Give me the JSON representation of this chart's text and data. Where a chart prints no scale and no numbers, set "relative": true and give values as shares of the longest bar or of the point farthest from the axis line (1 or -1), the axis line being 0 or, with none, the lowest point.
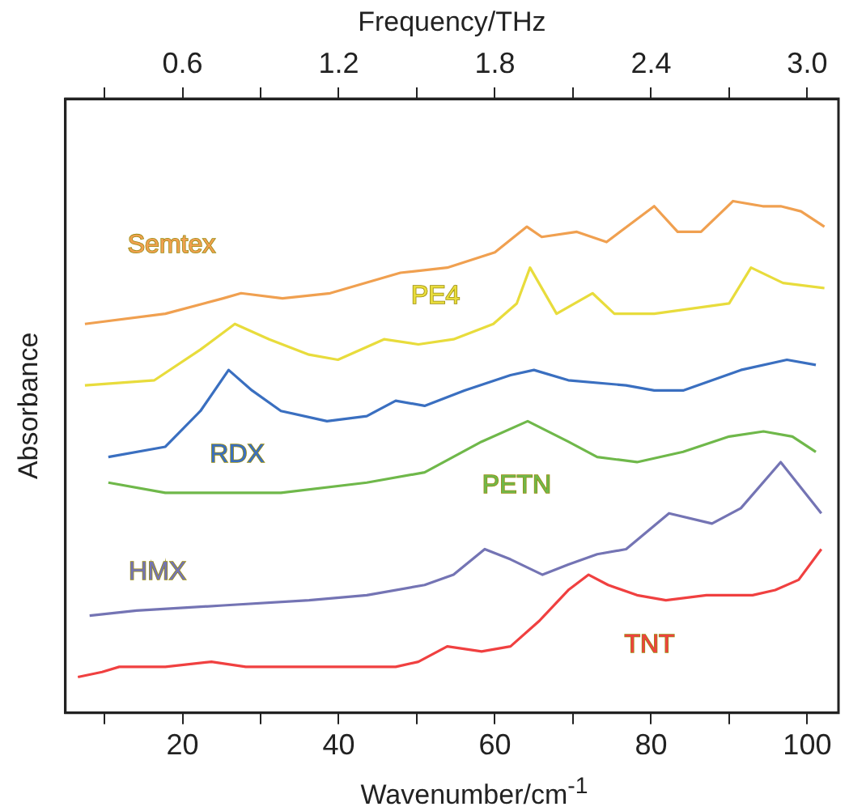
{
  "chart_data": {
    "type": "line",
    "xlabel": "Wavenumber/cm$^{-1}$",
    "ylabel": "Absorbance",
    "x2label": "Frequency/THz",
    "relative": true,
    "legend": false,
    "grid": false,
    "marker": "none",
    "line_style": "solid",
    "xlim": [
      5,
      104
    ],
    "xticks": [
      {
        "value": 10,
        "label": null
      },
      20,
      {
        "value": 30,
        "label": null
      },
      40,
      {
        "value": 50,
        "label": null
      },
      60,
      {
        "value": 70,
        "label": null
      },
      80,
      {
        "value": 90,
        "label": null
      },
      100
    ],
    "x2lim": [
      0.15,
      3.12
    ],
    "x2ticks": [
      {
        "value": 0.3,
        "label": null
      },
      0.6,
      {
        "value": 0.9,
        "label": null
      },
      1.2,
      {
        "value": 1.5,
        "label": null
      },
      1.8,
      {
        "value": 2.1,
        "label": null
      },
      2.4,
      {
        "value": 2.7,
        "label": null
      },
      {
        "value": 3,
        "label": "3.0"
      }
    ],
    "series": [
      {
        "name": "Semtex",
        "color": "#f0a050",
        "x": [
          7.5,
          17.8,
          25.2,
          27.5,
          32.8,
          38.9,
          47.9,
          53.9,
          60.0,
          64.1,
          66.0,
          70.5,
          74.3,
          80.4,
          83.4,
          86.4,
          90.5,
          94.3,
          96.6,
          99.2,
          102.2
        ],
        "values": [
          0.76,
          0.78,
          0.81,
          0.82,
          0.81,
          0.82,
          0.86,
          0.87,
          0.9,
          0.95,
          0.93,
          0.94,
          0.92,
          0.99,
          0.94,
          0.94,
          1.0,
          0.99,
          0.99,
          0.98,
          0.95
        ]
      },
      {
        "name": "PE4",
        "color": "#e8dc3c",
        "x": [
          7.5,
          16.4,
          22.3,
          26.7,
          31.1,
          36.2,
          39.9,
          45.8,
          50.2,
          54.7,
          59.8,
          62.8,
          64.5,
          67.9,
          72.5,
          75.3,
          80.4,
          90.0,
          92.8,
          96.9,
          102.2
        ],
        "values": [
          0.64,
          0.65,
          0.71,
          0.76,
          0.73,
          0.7,
          0.69,
          0.73,
          0.72,
          0.73,
          0.76,
          0.8,
          0.87,
          0.78,
          0.82,
          0.78,
          0.78,
          0.8,
          0.87,
          0.84,
          0.83
        ]
      },
      {
        "name": "RDX",
        "color": "#3a6fc0",
        "x": [
          10.5,
          17.8,
          22.3,
          25.9,
          28.9,
          32.6,
          38.5,
          43.6,
          47.3,
          51.0,
          56.1,
          62.0,
          65.0,
          69.4,
          76.8,
          80.4,
          84.1,
          91.5,
          97.4,
          101.1
        ],
        "values": [
          0.5,
          0.52,
          0.59,
          0.67,
          0.63,
          0.59,
          0.57,
          0.58,
          0.61,
          0.6,
          0.63,
          0.66,
          0.67,
          0.65,
          0.64,
          0.63,
          0.63,
          0.67,
          0.69,
          0.68
        ]
      },
      {
        "name": "PETN",
        "color": "#6fb84a",
        "x": [
          10.5,
          17.8,
          32.6,
          43.6,
          51.0,
          58.3,
          64.2,
          69.4,
          73.1,
          78.2,
          84.1,
          90.0,
          94.4,
          98.1,
          101.1
        ],
        "values": [
          0.45,
          0.43,
          0.43,
          0.45,
          0.47,
          0.53,
          0.57,
          0.53,
          0.5,
          0.49,
          0.51,
          0.54,
          0.55,
          0.54,
          0.51
        ]
      },
      {
        "name": "HMX",
        "color": "#7474b4",
        "x": [
          8.1,
          14.1,
          25.2,
          36.2,
          43.6,
          51.0,
          54.7,
          58.7,
          62.0,
          66.1,
          69.4,
          73.1,
          76.8,
          82.3,
          87.8,
          91.5,
          96.6,
          101.8
        ],
        "values": [
          0.19,
          0.2,
          0.21,
          0.22,
          0.23,
          0.25,
          0.27,
          0.32,
          0.3,
          0.27,
          0.29,
          0.31,
          0.32,
          0.39,
          0.37,
          0.4,
          0.49,
          0.39
        ]
      },
      {
        "name": "TNT",
        "color": "#f04040",
        "x": [
          6.6,
          9.7,
          11.9,
          17.8,
          23.7,
          28.1,
          34.0,
          39.9,
          47.3,
          50.2,
          53.9,
          58.3,
          62.0,
          65.7,
          69.4,
          72.0,
          74.5,
          78.2,
          81.9,
          87.1,
          93.0,
          95.9,
          98.9,
          101.8
        ],
        "values": [
          0.07,
          0.08,
          0.09,
          0.09,
          0.1,
          0.09,
          0.09,
          0.09,
          0.09,
          0.1,
          0.13,
          0.12,
          0.13,
          0.18,
          0.24,
          0.27,
          0.25,
          0.23,
          0.22,
          0.23,
          0.23,
          0.24,
          0.26,
          0.32
        ]
      }
    ]
  }
}
